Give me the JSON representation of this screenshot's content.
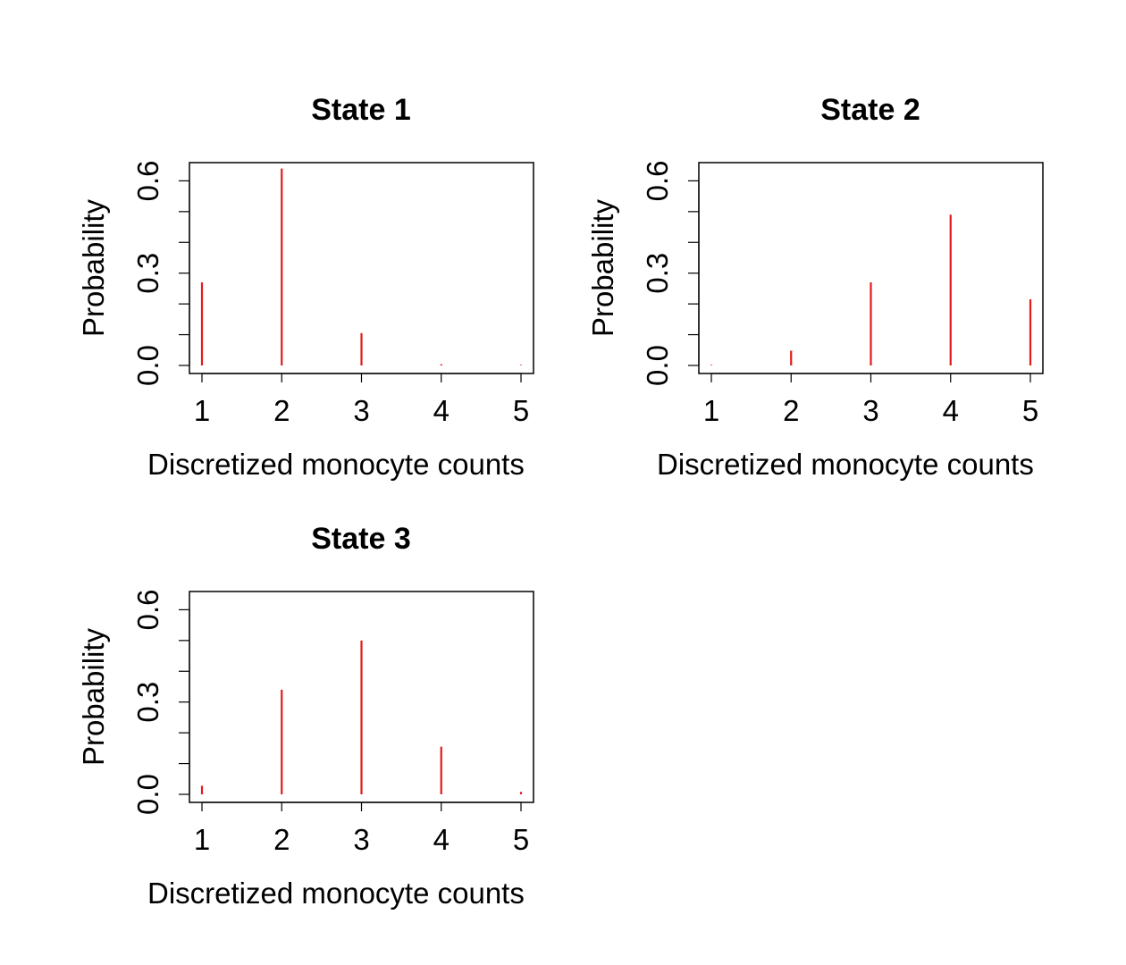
{
  "chart_data": [
    {
      "type": "bar",
      "title": "State 1",
      "xlabel": "Discretized monocyte counts",
      "ylabel": "Probability",
      "categories": [
        "1",
        "2",
        "3",
        "4",
        "5"
      ],
      "values": [
        0.27,
        0.64,
        0.105,
        0.004,
        0.002
      ],
      "ylim": [
        0,
        0.65
      ],
      "yticks_labeled": [
        "0.0",
        "0.3",
        "0.6"
      ],
      "color": "#e41a1c"
    },
    {
      "type": "bar",
      "title": "State 2",
      "xlabel": "Discretized monocyte counts",
      "ylabel": "Probability",
      "categories": [
        "1",
        "2",
        "3",
        "4",
        "5"
      ],
      "values": [
        0.002,
        0.048,
        0.27,
        0.49,
        0.215
      ],
      "ylim": [
        0,
        0.65
      ],
      "yticks_labeled": [
        "0.0",
        "0.3",
        "0.6"
      ],
      "color": "#e41a1c"
    },
    {
      "type": "bar",
      "title": "State 3",
      "xlabel": "Discretized monocyte counts",
      "ylabel": "Probability",
      "categories": [
        "1",
        "2",
        "3",
        "4",
        "5"
      ],
      "values": [
        0.028,
        0.34,
        0.5,
        0.155,
        0.008
      ],
      "ylim": [
        0,
        0.65
      ],
      "yticks_labeled": [
        "0.0",
        "0.3",
        "0.6"
      ],
      "color": "#e41a1c"
    }
  ]
}
